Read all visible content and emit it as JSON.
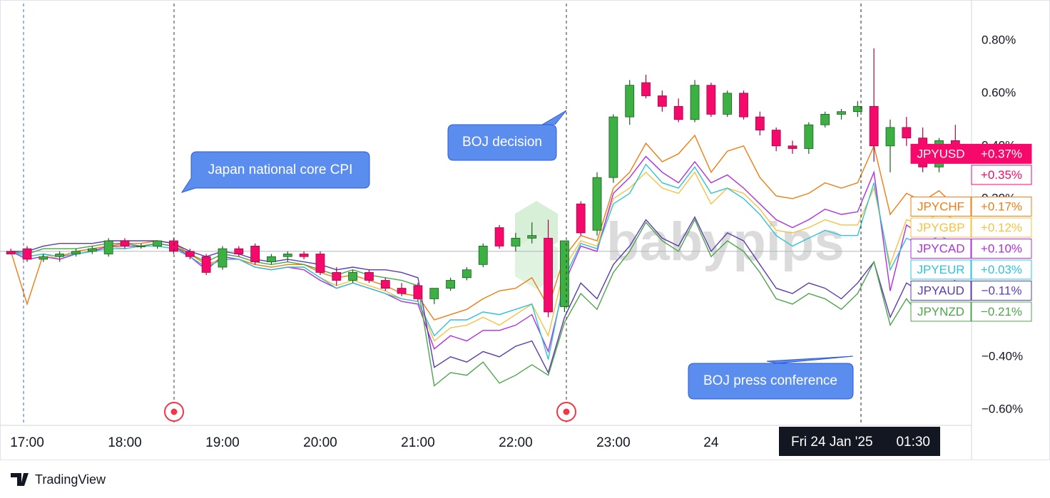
{
  "chart_data": {
    "type": "candlestick",
    "categories": [
      null,
      "17:00",
      null,
      null,
      null,
      null,
      null,
      "18:00",
      null,
      null,
      null,
      null,
      null,
      "19:00",
      null,
      null,
      null,
      null,
      null,
      "20:00",
      null,
      null,
      null,
      null,
      null,
      "21:00",
      null,
      null,
      null,
      null,
      null,
      "22:00",
      null,
      null,
      null,
      null,
      null,
      "23:00",
      null,
      null,
      null,
      null,
      null,
      "24",
      null,
      null,
      null,
      null,
      null,
      null,
      null,
      null,
      null,
      null,
      null,
      null,
      null,
      null,
      null
    ],
    "ylim": [
      -0.66,
      0.94
    ],
    "yticks": [
      {
        "value": 0.8,
        "label": "0.80%"
      },
      {
        "value": 0.6,
        "label": "0.60%"
      },
      {
        "value": 0.4,
        "label": "0.40%"
      },
      {
        "value": 0.2,
        "label": "0.20%"
      },
      {
        "value": -0.4,
        "label": "−0.40%"
      },
      {
        "value": -0.6,
        "label": "−0.60%"
      }
    ],
    "candles": {
      "name": "JPYUSD",
      "up_color": "#3cb043",
      "up_stroke": "#1b5e20",
      "down_color": "#f50a6b",
      "down_stroke": "#a00848",
      "badges": [
        {
          "value": 0.37,
          "label": "+0.37%"
        },
        {
          "value": 0.35,
          "label": "+0.35%"
        }
      ],
      "open": [
        0.0,
        0.01,
        -0.03,
        -0.02,
        -0.01,
        0.0,
        -0.01,
        0.04,
        0.02,
        0.02,
        0.04,
        0.0,
        -0.02,
        -0.06,
        0.01,
        0.02,
        -0.04,
        -0.02,
        -0.01,
        -0.01,
        -0.08,
        -0.11,
        -0.08,
        -0.11,
        -0.14,
        -0.13,
        -0.18,
        -0.14,
        -0.1,
        -0.05,
        0.09,
        0.02,
        0.05,
        0.05,
        -0.21,
        0.18,
        0.08,
        0.28,
        0.51,
        0.64,
        0.59,
        0.55,
        0.5,
        0.63,
        0.52,
        0.6,
        0.51,
        0.46,
        0.4,
        0.39,
        0.48,
        0.52,
        0.53,
        0.55,
        0.4,
        0.47,
        0.43,
        0.32,
        0.42
      ],
      "high": [
        0.01,
        0.02,
        -0.01,
        0.0,
        0.01,
        0.02,
        0.05,
        0.05,
        0.03,
        0.04,
        0.05,
        0.01,
        -0.01,
        0.02,
        0.02,
        0.03,
        -0.01,
        0.0,
        0.0,
        0.0,
        -0.06,
        -0.07,
        -0.07,
        -0.1,
        -0.12,
        -0.12,
        -0.14,
        -0.1,
        -0.06,
        0.03,
        0.1,
        0.07,
        0.11,
        0.12,
        0.04,
        0.19,
        0.3,
        0.52,
        0.65,
        0.67,
        0.61,
        0.58,
        0.65,
        0.64,
        0.61,
        0.61,
        0.53,
        0.47,
        0.42,
        0.49,
        0.53,
        0.54,
        0.57,
        0.77,
        0.5,
        0.51,
        0.47,
        0.43,
        0.48
      ],
      "low": [
        -0.01,
        -0.04,
        -0.04,
        -0.04,
        -0.02,
        -0.01,
        -0.02,
        0.01,
        0.01,
        0.01,
        -0.01,
        -0.03,
        -0.09,
        -0.07,
        -0.02,
        -0.05,
        -0.05,
        -0.04,
        -0.03,
        -0.09,
        -0.13,
        -0.12,
        -0.12,
        -0.15,
        -0.17,
        -0.19,
        -0.2,
        -0.15,
        -0.11,
        -0.06,
        0.01,
        0.0,
        0.03,
        -0.25,
        -0.23,
        0.06,
        0.06,
        0.26,
        0.48,
        0.58,
        0.53,
        0.49,
        0.49,
        0.51,
        0.51,
        0.5,
        0.44,
        0.38,
        0.37,
        0.37,
        0.47,
        0.5,
        0.51,
        0.34,
        0.3,
        0.4,
        0.3,
        0.3,
        0.35
      ],
      "close": [
        -0.01,
        -0.03,
        -0.02,
        -0.01,
        0.0,
        0.01,
        0.04,
        0.02,
        0.02,
        0.04,
        0.0,
        -0.02,
        -0.08,
        0.01,
        -0.01,
        -0.04,
        -0.02,
        -0.01,
        -0.02,
        -0.08,
        -0.11,
        -0.08,
        -0.11,
        -0.14,
        -0.16,
        -0.18,
        -0.14,
        -0.11,
        -0.07,
        0.02,
        0.02,
        0.05,
        0.06,
        -0.23,
        0.04,
        0.07,
        0.28,
        0.51,
        0.63,
        0.59,
        0.55,
        0.5,
        0.63,
        0.52,
        0.6,
        0.51,
        0.46,
        0.4,
        0.39,
        0.48,
        0.52,
        0.53,
        0.55,
        0.4,
        0.47,
        0.43,
        0.32,
        0.42,
        0.37
      ]
    },
    "series": [
      {
        "name": "JPYCHF",
        "color": "#ef7d12",
        "last_label": "+0.17%",
        "values": [
          0.0,
          -0.2,
          -0.01,
          -0.02,
          0.0,
          0.01,
          0.02,
          0.03,
          0.03,
          0.04,
          0.03,
          -0.01,
          -0.05,
          -0.03,
          -0.03,
          -0.05,
          -0.06,
          -0.05,
          -0.05,
          -0.08,
          -0.1,
          -0.09,
          -0.11,
          -0.13,
          -0.16,
          -0.17,
          -0.26,
          -0.24,
          -0.22,
          -0.18,
          -0.15,
          -0.14,
          -0.1,
          -0.21,
          -0.02,
          0.06,
          0.04,
          0.24,
          0.3,
          0.41,
          0.34,
          0.37,
          0.44,
          0.3,
          0.38,
          0.4,
          0.28,
          0.21,
          0.2,
          0.22,
          0.26,
          0.24,
          0.26,
          0.4,
          0.14,
          0.22,
          0.19,
          0.23,
          0.17
        ]
      },
      {
        "name": "JPYGBP",
        "color": "#f5c242",
        "last_label": "+0.12%",
        "values": [
          0.0,
          -0.02,
          -0.01,
          -0.03,
          -0.01,
          0.0,
          0.02,
          0.01,
          0.02,
          0.03,
          0.02,
          -0.02,
          -0.06,
          -0.02,
          -0.03,
          -0.06,
          -0.07,
          -0.06,
          -0.06,
          -0.1,
          -0.13,
          -0.11,
          -0.13,
          -0.15,
          -0.18,
          -0.19,
          -0.34,
          -0.29,
          -0.28,
          -0.25,
          -0.28,
          -0.24,
          -0.2,
          -0.32,
          -0.06,
          0.04,
          0.02,
          0.2,
          0.24,
          0.3,
          0.24,
          0.22,
          0.3,
          0.18,
          0.24,
          0.22,
          0.16,
          0.08,
          0.07,
          0.09,
          0.12,
          0.1,
          0.1,
          0.24,
          -0.05,
          0.12,
          0.1,
          0.15,
          0.12
        ]
      },
      {
        "name": "JPYCAD",
        "color": "#b22ee0",
        "last_label": "+0.10%",
        "values": [
          0.0,
          -0.03,
          -0.02,
          -0.03,
          -0.01,
          0.0,
          0.02,
          0.02,
          0.02,
          0.03,
          0.02,
          -0.02,
          -0.07,
          -0.02,
          -0.03,
          -0.06,
          -0.07,
          -0.06,
          -0.07,
          -0.11,
          -0.14,
          -0.12,
          -0.14,
          -0.16,
          -0.19,
          -0.2,
          -0.37,
          -0.32,
          -0.34,
          -0.3,
          -0.3,
          -0.28,
          -0.24,
          -0.38,
          -0.12,
          0.02,
          0.0,
          0.22,
          0.28,
          0.36,
          0.3,
          0.26,
          0.34,
          0.26,
          0.29,
          0.24,
          0.18,
          0.12,
          0.09,
          0.12,
          0.16,
          0.14,
          0.15,
          0.3,
          -0.15,
          0.1,
          0.06,
          0.12,
          0.1
        ]
      },
      {
        "name": "JPYEUR",
        "color": "#2ec4d6",
        "last_label": "+0.03%",
        "values": [
          0.0,
          -0.02,
          -0.01,
          -0.02,
          -0.01,
          0.0,
          0.01,
          0.01,
          0.02,
          0.02,
          0.01,
          -0.02,
          -0.06,
          -0.03,
          -0.03,
          -0.06,
          -0.07,
          -0.06,
          -0.06,
          -0.1,
          -0.14,
          -0.12,
          -0.14,
          -0.16,
          -0.18,
          -0.19,
          -0.32,
          -0.26,
          -0.26,
          -0.23,
          -0.24,
          -0.22,
          -0.2,
          -0.41,
          -0.1,
          0.03,
          0.01,
          0.18,
          0.22,
          0.33,
          0.26,
          0.24,
          0.32,
          0.22,
          0.24,
          0.2,
          0.14,
          0.06,
          0.02,
          0.05,
          0.08,
          0.06,
          0.06,
          0.26,
          -0.07,
          0.05,
          0.02,
          0.06,
          0.03
        ]
      },
      {
        "name": "JPYAUD",
        "color": "#5b3cb0",
        "last_label": "−0.11%",
        "values": [
          0.0,
          0.0,
          0.02,
          0.03,
          0.03,
          0.03,
          0.04,
          0.04,
          0.04,
          0.04,
          0.03,
          0.0,
          -0.02,
          0.0,
          -0.01,
          -0.03,
          -0.04,
          -0.03,
          -0.04,
          -0.05,
          -0.07,
          -0.06,
          -0.07,
          -0.07,
          -0.08,
          -0.1,
          -0.44,
          -0.4,
          -0.42,
          -0.38,
          -0.4,
          -0.36,
          -0.34,
          -0.46,
          -0.25,
          -0.12,
          -0.18,
          -0.05,
          0.02,
          0.12,
          0.05,
          0.02,
          0.13,
          0.0,
          0.07,
          0.04,
          -0.05,
          -0.14,
          -0.16,
          -0.12,
          -0.14,
          -0.18,
          -0.12,
          -0.04,
          -0.25,
          -0.12,
          -0.16,
          -0.14,
          -0.11
        ]
      },
      {
        "name": "JPYNZD",
        "color": "#4ca64c",
        "last_label": "−0.21%",
        "values": [
          0.0,
          -0.01,
          0.01,
          0.01,
          0.01,
          0.02,
          0.03,
          0.03,
          0.02,
          0.03,
          0.02,
          -0.01,
          -0.04,
          -0.01,
          -0.02,
          -0.04,
          -0.05,
          -0.04,
          -0.05,
          -0.07,
          -0.09,
          -0.07,
          -0.09,
          -0.1,
          -0.11,
          -0.13,
          -0.51,
          -0.46,
          -0.47,
          -0.42,
          -0.5,
          -0.47,
          -0.43,
          -0.47,
          -0.27,
          -0.16,
          -0.22,
          -0.08,
          0.0,
          0.11,
          0.04,
          0.0,
          0.12,
          -0.02,
          0.04,
          0.0,
          -0.08,
          -0.18,
          -0.2,
          -0.16,
          -0.18,
          -0.22,
          -0.16,
          -0.04,
          -0.28,
          -0.18,
          -0.26,
          -0.22,
          -0.21
        ]
      }
    ],
    "annotations": [
      "Japan national core CPI",
      "BOJ decision",
      "BOJ press conference"
    ],
    "crosshair_date": "Fri 24 Jan '25",
    "crosshair_time": "01:30",
    "watermark": "babypips",
    "brand": "TradingView"
  }
}
